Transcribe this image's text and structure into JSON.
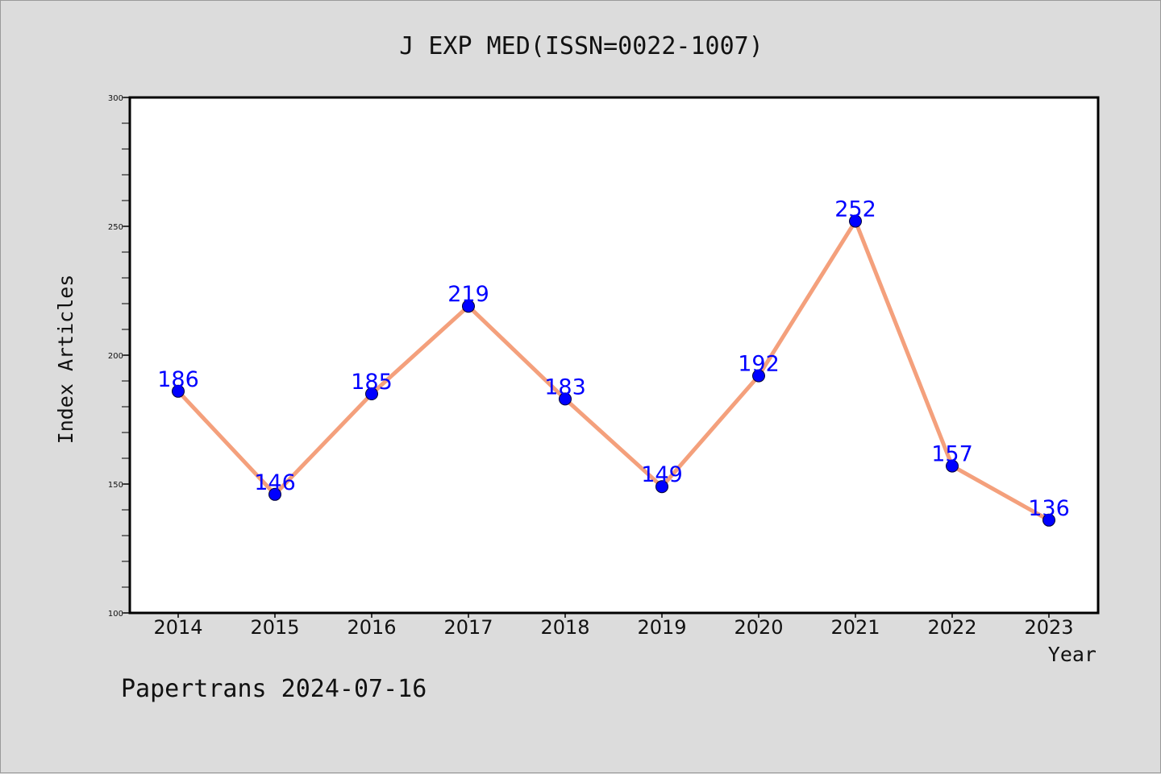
{
  "chart_data": {
    "type": "line",
    "title": "J EXP MED(ISSN=0022-1007)",
    "xlabel": "Year",
    "ylabel": "Index Articles",
    "categories": [
      "2014",
      "2015",
      "2016",
      "2017",
      "2018",
      "2019",
      "2020",
      "2021",
      "2022",
      "2023"
    ],
    "series": [
      {
        "values": [
          186,
          146,
          185,
          219,
          183,
          149,
          192,
          252,
          157,
          136
        ],
        "line_color": "#f4a07c",
        "marker_color": "#0000ff"
      }
    ],
    "ylim": [
      100,
      300
    ],
    "yticks": [
      100,
      150,
      200,
      250,
      300
    ],
    "grid": false,
    "data_labels": true
  },
  "footer": {
    "text": "Papertrans 2024-07-16"
  },
  "colors": {
    "background": "#dcdcdc",
    "plot_background": "#ffffff",
    "line": "#f4a07c",
    "marker": "#0000ff",
    "data_label": "#0000ff"
  }
}
